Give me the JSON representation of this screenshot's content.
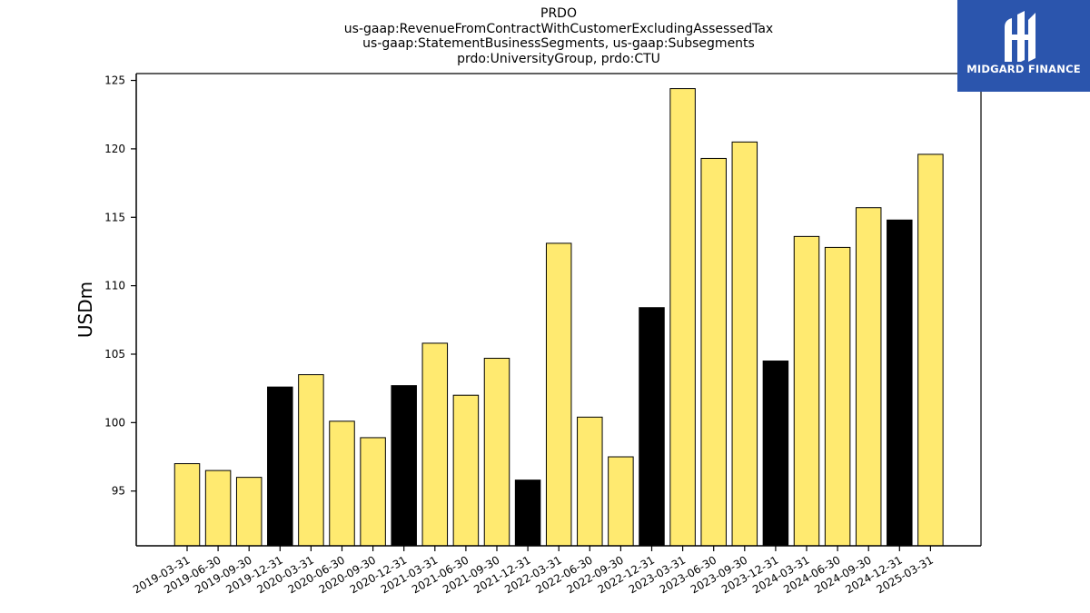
{
  "title_lines": [
    "PRDO",
    "us-gaap:RevenueFromContractWithCustomerExcludingAssessedTax",
    "us-gaap:StatementBusinessSegments, us-gaap:Subsegments",
    "prdo:UniversityGroup, prdo:CTU"
  ],
  "logo": {
    "text": "MIDGARD FINANCE",
    "background": "#2b55ad",
    "mark_icon": "midgard-logo-icon"
  },
  "colors": {
    "regular": "#ffea70",
    "highlight": "#000000"
  },
  "chart_data": {
    "type": "bar",
    "ylabel": "USDm",
    "xlabel": "",
    "ylim": [
      91,
      125.5
    ],
    "yticks": [
      95,
      100,
      105,
      110,
      115,
      120,
      125
    ],
    "grid": false,
    "categories": [
      "2019-03-31",
      "2019-06-30",
      "2019-09-30",
      "2019-12-31",
      "2020-03-31",
      "2020-06-30",
      "2020-09-30",
      "2020-12-31",
      "2021-03-31",
      "2021-06-30",
      "2021-09-30",
      "2021-12-31",
      "2022-03-31",
      "2022-06-30",
      "2022-09-30",
      "2022-12-31",
      "2023-03-31",
      "2023-06-30",
      "2023-09-30",
      "2023-12-31",
      "2024-03-31",
      "2024-06-30",
      "2024-09-30",
      "2024-12-31",
      "2025-03-31"
    ],
    "values": [
      97.0,
      96.5,
      96.0,
      102.6,
      103.5,
      100.1,
      98.9,
      102.7,
      105.8,
      102.0,
      104.7,
      95.8,
      113.1,
      100.4,
      97.5,
      108.4,
      124.4,
      119.3,
      120.5,
      104.5,
      113.6,
      112.8,
      115.7,
      114.8,
      119.6
    ],
    "highlighted": [
      false,
      false,
      false,
      true,
      false,
      false,
      false,
      true,
      false,
      false,
      false,
      true,
      false,
      false,
      false,
      true,
      false,
      false,
      false,
      true,
      false,
      false,
      false,
      true,
      false
    ]
  }
}
